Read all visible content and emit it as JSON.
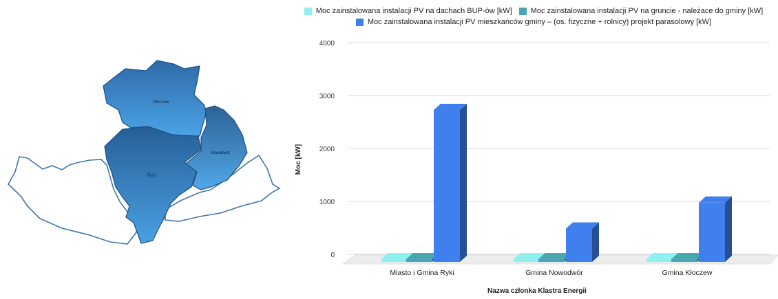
{
  "map": {
    "region_labels": [
      "Kłoczew",
      "Nowodwór",
      "Ryki"
    ]
  },
  "legend": {
    "items": [
      {
        "label": "Moc zainstalowana instalacji PV na dachach BUP-ów [kW]",
        "color": "#8ff0f0"
      },
      {
        "label": "Moc zainstalowana instalacji PV na gruncie - należace do gminy [kW]",
        "color": "#4aa6b0"
      },
      {
        "label": "Moc zainstalowana instalacji PV mieszkańców gminy – (os. fizyczne + rolnicy) projekt parasolowy [kW]",
        "color": "#3f80ee"
      }
    ]
  },
  "chart_data": {
    "type": "bar",
    "categories": [
      "Miasto i Gmina Ryki",
      "Gmina Nowodwór",
      "Gmina Kłoczew"
    ],
    "series": [
      {
        "name": "Moc zainstalowana instalacji PV na dachach BUP-ów [kW]",
        "values": [
          0,
          0,
          0
        ],
        "color": "#8ff0f0"
      },
      {
        "name": "Moc zainstalowana instalacji PV na gruncie - należace do gminy [kW]",
        "values": [
          0,
          0,
          0
        ],
        "color": "#4aa6b0"
      },
      {
        "name": "Moc zainstalowana instalacji PV mieszkańców gminy – (os. fizyczne + rolnicy) projekt parasolowy [kW]",
        "values": [
          2870,
          630,
          1120
        ],
        "color": "#3f80ee"
      }
    ],
    "xlabel": "Nazwa członka Klastra Energii",
    "ylabel": "Moc [kW]",
    "ylim": [
      0,
      4000
    ],
    "yticks": [
      "0",
      "1000",
      "2000",
      "3000",
      "4000"
    ],
    "grid": true,
    "legend_position": "top"
  }
}
